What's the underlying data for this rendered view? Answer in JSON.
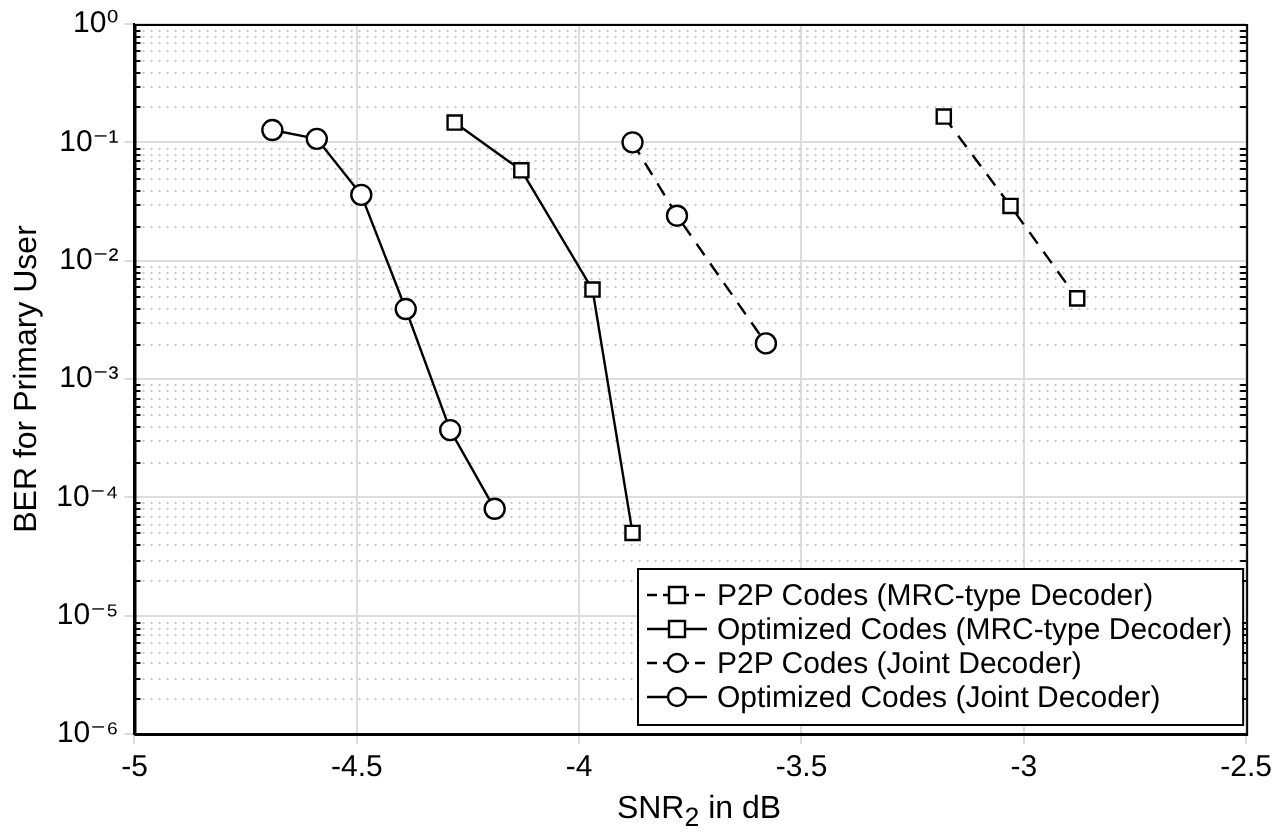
{
  "chart_data": {
    "type": "line",
    "xlabel": "SNR$_{2}$ in dB",
    "ylabel": "BER for Primary User",
    "log": "y",
    "grid": true,
    "legend": "bottom right",
    "xlim": [
      -5,
      -2.5
    ],
    "xticks": [
      -5,
      -4.5,
      -4,
      -3.5,
      -3,
      -2.5
    ],
    "ylim": [
      1e-06,
      1
    ],
    "yticks": [
      {
        "value": 1e-06,
        "label": "10⁻⁶"
      },
      {
        "value": 1e-05,
        "label": "10⁻⁵"
      },
      {
        "value": 0.0001,
        "label": "10⁻⁴"
      },
      {
        "value": 0.001,
        "label": "10⁻³"
      },
      {
        "value": 0.01,
        "label": "10⁻²"
      },
      {
        "value": 0.1,
        "label": "10⁻¹"
      },
      {
        "value": 1,
        "label": "10⁰"
      }
    ],
    "series": [
      {
        "name": "P2P Codes (MRC-type Decoder)",
        "color": "#000000",
        "marker": "square",
        "line_style": "dashed",
        "x": [
          -3.18,
          -3.03,
          -2.88
        ],
        "values": [
          0.165,
          0.029,
          0.0048
        ]
      },
      {
        "name": "Optimized Codes (MRC-type Decoder)",
        "color": "#000000",
        "marker": "square",
        "line_style": "solid",
        "x": [
          -4.28,
          -4.13,
          -3.97,
          -3.88
        ],
        "values": [
          0.147,
          0.058,
          0.0057,
          5e-05
        ]
      },
      {
        "name": "P2P Codes (Joint Decoder)",
        "color": "#000000",
        "marker": "circle",
        "line_style": "dashed",
        "x": [
          -3.88,
          -3.78,
          -3.58
        ],
        "values": [
          0.1,
          0.024,
          0.002
        ]
      },
      {
        "name": "Optimized Codes (Joint Decoder)",
        "color": "#000000",
        "marker": "circle",
        "line_style": "solid",
        "x": [
          -4.69,
          -4.59,
          -4.49,
          -4.39,
          -4.29,
          -4.19
        ],
        "values": [
          0.127,
          0.107,
          0.036,
          0.0039,
          0.00037,
          8e-05
        ]
      }
    ]
  }
}
